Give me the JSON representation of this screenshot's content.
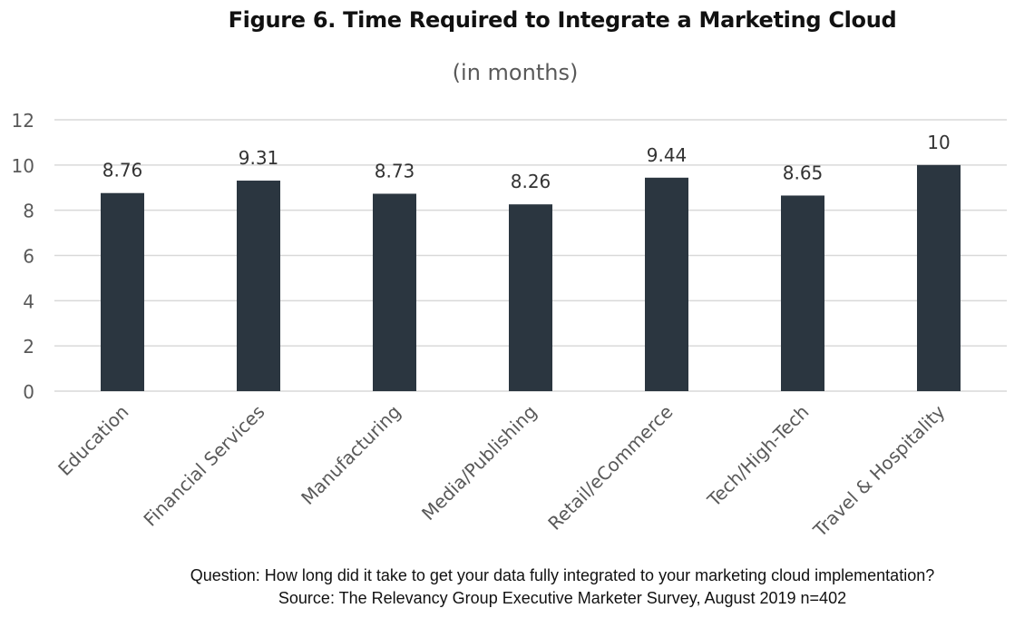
{
  "chart_data": {
    "type": "bar",
    "title": "Figure 6. Time Required to Integrate a Marketing Cloud",
    "subtitle": "(in months)",
    "categories": [
      "Education",
      "Financial Services",
      "Manufacturing",
      "Media/Publishing",
      "Retail/eCommerce",
      "Tech/High-Tech",
      "Travel & Hospitality"
    ],
    "values": [
      8.76,
      9.31,
      8.73,
      8.26,
      9.44,
      8.65,
      10
    ],
    "data_labels": [
      "8.76",
      "9.31",
      "8.73",
      "8.26",
      "9.44",
      "8.65",
      "10"
    ],
    "ylim": [
      0,
      12
    ],
    "yticks": [
      0,
      2,
      4,
      6,
      8,
      10,
      12
    ],
    "grid": true,
    "legend": "none",
    "bar_color": "#2b3640",
    "grid_color": "#d9d9d9"
  },
  "footer": {
    "question": "Question: How long did it take to get your data fully integrated to your marketing cloud implementation?",
    "source": "Source: The Relevancy Group Executive Marketer Survey, August 2019 n=402"
  }
}
